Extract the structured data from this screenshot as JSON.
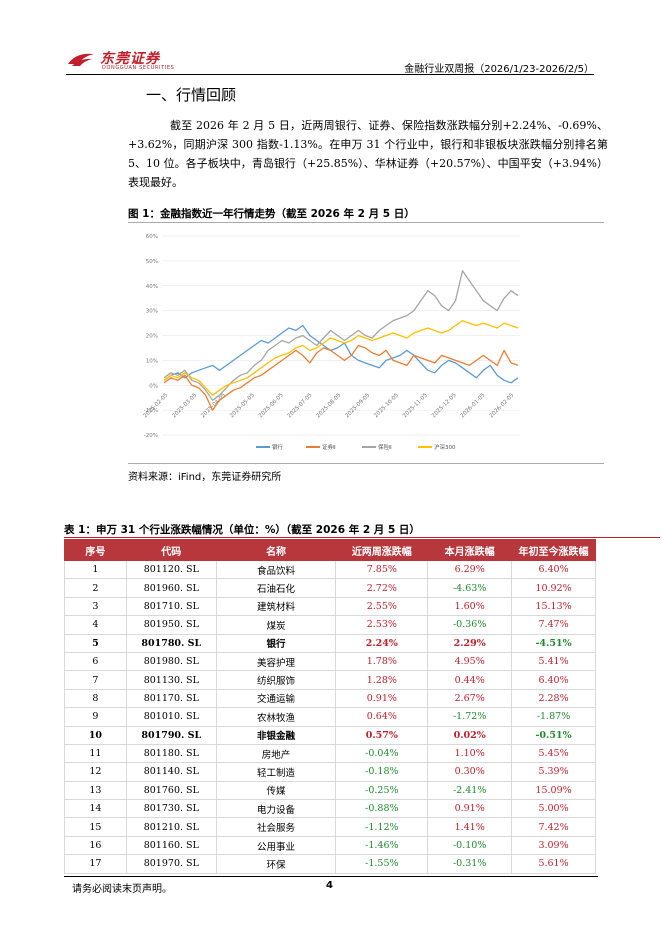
{
  "header": {
    "logo_cn": "东莞证券",
    "logo_en": "DONGGUAN SECURITIES",
    "report_title": "金融行业双周报（2026/1/23-2026/2/5）"
  },
  "section": {
    "title": "一、行情回顾",
    "paragraph": "截至 2026 年 2 月 5 日，近两周银行、证券、保险指数涨跌幅分别+2.24%、-0.69%、+3.62%，同期沪深 300 指数-1.13%。在申万 31 个行业中，银行和非银板块涨跌幅分别排名第 5、10 位。各子板块中，青岛银行（+25.85%）、华林证券（+20.57%）、中国平安（+3.94%）表现最好。"
  },
  "figure": {
    "caption": "图 1：金融指数近一年行情走势（截至 2026 年 2 月 5 日）",
    "source": "资料来源：iFind，东莞证券研究所"
  },
  "chart_data": {
    "type": "line",
    "ylim": [
      -20,
      60
    ],
    "yticks": [
      "60%",
      "50%",
      "40%",
      "30%",
      "20%",
      "10%",
      "0%",
      "-10%",
      "-20%"
    ],
    "ytick_values": [
      60,
      50,
      40,
      30,
      20,
      10,
      0,
      -10,
      -20
    ],
    "x_labels": [
      "2025-02-05",
      "2025-03-05",
      "2025-04-05",
      "2025-05-05",
      "2025-06-05",
      "2025-07-05",
      "2025-08-05",
      "2025-09-05",
      "2025-10-05",
      "2025-11-05",
      "2025-12-05",
      "2026-01-05",
      "2026-02-05"
    ],
    "grid": true,
    "legend_position": "bottom",
    "series": [
      {
        "name": "银行",
        "color": "#5b9bd5",
        "values": [
          2,
          4,
          5,
          3,
          5,
          6,
          7,
          8,
          6,
          8,
          10,
          12,
          14,
          16,
          18,
          17,
          19,
          21,
          23,
          22,
          24,
          20,
          18,
          16,
          14,
          15,
          17,
          12,
          10,
          9,
          8,
          7,
          10,
          11,
          12,
          14,
          12,
          9,
          6,
          5,
          8,
          10,
          9,
          7,
          5,
          3,
          6,
          8,
          4,
          2,
          1,
          3
        ]
      },
      {
        "name": "证券Ⅱ",
        "color": "#ed7d31",
        "values": [
          1,
          3,
          2,
          4,
          0,
          -1,
          -4,
          -10,
          -6,
          -4,
          -2,
          -1,
          1,
          3,
          4,
          6,
          8,
          10,
          12,
          14,
          12,
          9,
          13,
          15,
          14,
          12,
          10,
          12,
          16,
          15,
          13,
          12,
          14,
          10,
          9,
          8,
          12,
          11,
          10,
          9,
          12,
          11,
          10,
          9,
          8,
          10,
          12,
          10,
          8,
          14,
          9,
          8
        ]
      },
      {
        "name": "保险Ⅱ",
        "color": "#a5a5a5",
        "values": [
          3,
          5,
          4,
          6,
          2,
          1,
          -2,
          -6,
          -4,
          -1,
          2,
          4,
          5,
          8,
          10,
          14,
          16,
          18,
          17,
          19,
          20,
          18,
          16,
          19,
          22,
          20,
          18,
          20,
          22,
          20,
          19,
          22,
          24,
          26,
          27,
          28,
          30,
          34,
          38,
          36,
          32,
          30,
          34,
          46,
          42,
          38,
          34,
          32,
          30,
          35,
          38,
          36
        ]
      },
      {
        "name": "沪深300",
        "color": "#ffc000",
        "values": [
          2,
          4,
          3,
          5,
          3,
          2,
          -1,
          -4,
          -2,
          0,
          1,
          2,
          3,
          5,
          7,
          9,
          11,
          12,
          13,
          15,
          16,
          14,
          15,
          17,
          19,
          18,
          17,
          18,
          20,
          19,
          18,
          19,
          20,
          21,
          20,
          19,
          21,
          22,
          23,
          22,
          21,
          22,
          24,
          26,
          25,
          24,
          25,
          24,
          23,
          25,
          24,
          23
        ]
      }
    ]
  },
  "table": {
    "caption": "表 1：申万 31 个行业涨跌幅情况（单位：%）（截至 2026 年 2 月 5 日）",
    "headers": [
      "序号",
      "代码",
      "名称",
      "近两周涨跌幅",
      "本月涨跌幅",
      "年初至今涨跌幅"
    ],
    "rows": [
      [
        "1",
        "801120. SL",
        "食品饮料",
        "7.85%",
        "6.29%",
        "6.40%"
      ],
      [
        "2",
        "801960. SL",
        "石油石化",
        "2.72%",
        "-4.63%",
        "10.92%"
      ],
      [
        "3",
        "801710. SL",
        "建筑材料",
        "2.55%",
        "1.60%",
        "15.13%"
      ],
      [
        "4",
        "801950. SL",
        "煤炭",
        "2.53%",
        "-0.36%",
        "7.47%"
      ],
      [
        "5",
        "801780. SL",
        "银行",
        "2.24%",
        "2.29%",
        "-4.51%"
      ],
      [
        "6",
        "801980. SL",
        "美容护理",
        "1.78%",
        "4.95%",
        "5.41%"
      ],
      [
        "7",
        "801130. SL",
        "纺织服饰",
        "1.28%",
        "0.44%",
        "6.40%"
      ],
      [
        "8",
        "801170. SL",
        "交通运输",
        "0.91%",
        "2.67%",
        "2.28%"
      ],
      [
        "9",
        "801010. SL",
        "农林牧渔",
        "0.64%",
        "-1.72%",
        "-1.87%"
      ],
      [
        "10",
        "801790. SL",
        "非银金融",
        "0.57%",
        "0.02%",
        "-0.51%"
      ],
      [
        "11",
        "801180. SL",
        "房地产",
        "-0.04%",
        "1.10%",
        "5.45%"
      ],
      [
        "12",
        "801140. SL",
        "轻工制造",
        "-0.18%",
        "0.30%",
        "5.39%"
      ],
      [
        "13",
        "801760. SL",
        "传媒",
        "-0.25%",
        "-2.41%",
        "15.09%"
      ],
      [
        "14",
        "801730. SL",
        "电力设备",
        "-0.88%",
        "0.91%",
        "5.00%"
      ],
      [
        "15",
        "801210. SL",
        "社会服务",
        "-1.12%",
        "1.41%",
        "7.42%"
      ],
      [
        "16",
        "801160. SL",
        "公用事业",
        "-1.46%",
        "-0.10%",
        "3.09%"
      ],
      [
        "17",
        "801970. SL",
        "环保",
        "-1.55%",
        "-0.31%",
        "5.61%"
      ]
    ],
    "highlight_rows": [
      5,
      10
    ]
  },
  "footer": {
    "disclaimer": "请务必阅读末页声明。",
    "page_number": "4"
  }
}
